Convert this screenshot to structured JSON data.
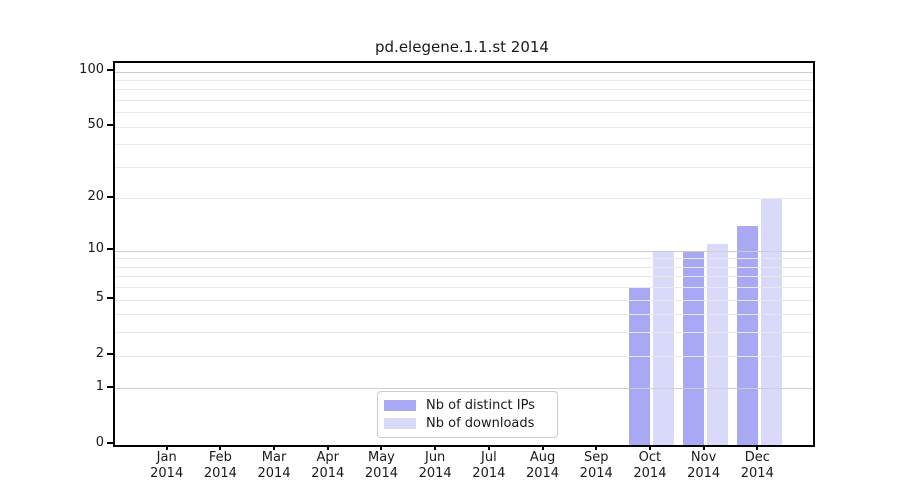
{
  "title": "pd.elegene.1.1.st 2014",
  "colors": {
    "distinct_ips": "#a8a8f5",
    "downloads": "#d9d9fa",
    "grid_minor": "#e9e9e9",
    "grid_major": "#cdcdcd",
    "axis": "#000000",
    "text": "#1a1a1a",
    "legend_border": "#cccccc"
  },
  "legend": {
    "items": [
      {
        "label": "Nb of distinct IPs",
        "color_key": "distinct_ips"
      },
      {
        "label": "Nb of downloads",
        "color_key": "downloads"
      }
    ]
  },
  "chart_data": {
    "type": "bar",
    "title": "pd.elegene.1.1.st 2014",
    "categories": [
      "Jan 2014",
      "Feb 2014",
      "Mar 2014",
      "Apr 2014",
      "May 2014",
      "Jun 2014",
      "Jul 2014",
      "Aug 2014",
      "Sep 2014",
      "Oct 2014",
      "Nov 2014",
      "Dec 2014"
    ],
    "series": [
      {
        "name": "Nb of distinct IPs",
        "values": [
          0,
          0,
          0,
          0,
          0,
          0,
          0,
          0,
          0,
          6,
          10,
          14
        ]
      },
      {
        "name": "Nb of downloads",
        "values": [
          0,
          0,
          0,
          0,
          0,
          0,
          0,
          0,
          0,
          10,
          11,
          20
        ]
      }
    ],
    "xlabel": "",
    "ylabel": "",
    "yscale": "log1p",
    "yticks": [
      0,
      1,
      2,
      5,
      10,
      20,
      50,
      100
    ],
    "major_gridline_values": [
      1,
      10,
      100
    ],
    "gridline_values": [
      1,
      2,
      3,
      4,
      5,
      6,
      7,
      8,
      9,
      10,
      20,
      30,
      40,
      50,
      60,
      70,
      80,
      90,
      100
    ],
    "ylim": [
      0,
      112
    ],
    "grid": true,
    "legend_position": "lower center"
  }
}
